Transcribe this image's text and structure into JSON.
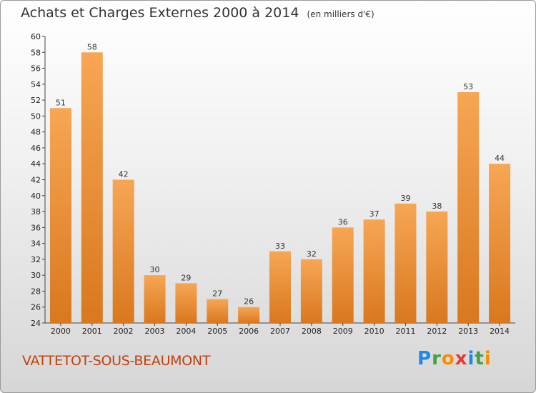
{
  "title": {
    "main": "Achats et Charges Externes 2000 à 2014",
    "unit": "(en milliers d'€)"
  },
  "location": "VATTETOT-SOUS-BEAUMONT",
  "logo": {
    "text": "Proxiti",
    "letters": [
      "P",
      "r",
      "o",
      "x",
      "i",
      "t",
      "i"
    ],
    "colors": [
      "#1e88e5",
      "#43a047",
      "#fb8c00",
      "#e53935",
      "#1e88e5",
      "#43a047",
      "#fb8c00"
    ]
  },
  "colors": {
    "bar_top": "#f7a654",
    "bar_bottom": "#d9781e",
    "axis": "#444444"
  },
  "chart_data": {
    "type": "bar",
    "categories": [
      "2000",
      "2001",
      "2002",
      "2003",
      "2004",
      "2005",
      "2006",
      "2007",
      "2008",
      "2009",
      "2010",
      "2011",
      "2012",
      "2013",
      "2014"
    ],
    "values": [
      51,
      58,
      42,
      30,
      29,
      27,
      26,
      33,
      32,
      36,
      37,
      39,
      38,
      53,
      44
    ],
    "title": "Achats et Charges Externes 2000 à 2014",
    "ylim": [
      24,
      60
    ],
    "yticks": [
      24,
      26,
      28,
      30,
      32,
      34,
      36,
      38,
      40,
      42,
      44,
      46,
      48,
      50,
      52,
      54,
      56,
      58,
      60
    ],
    "grid": false
  }
}
